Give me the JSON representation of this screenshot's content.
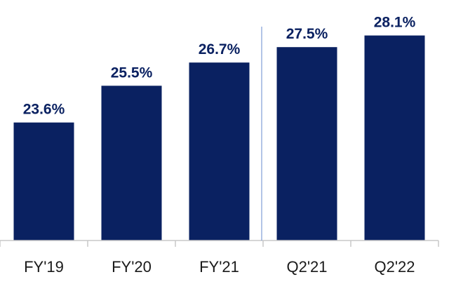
{
  "chart_data": {
    "type": "bar",
    "title": "",
    "xlabel": "",
    "ylabel": "",
    "categories": [
      "FY'19",
      "FY'20",
      "FY'21",
      "Q2'21",
      "Q2'22"
    ],
    "values": [
      23.6,
      25.5,
      26.7,
      27.5,
      28.1
    ],
    "data_labels": [
      "23.6%",
      "25.5%",
      "26.7%",
      "27.5%",
      "28.1%"
    ],
    "ylim": [
      17.5,
      29.5
    ],
    "grid": false,
    "legend": "none",
    "separator_after_category": "FY'21",
    "colors": {
      "bar": "#0a2161",
      "data_label": "#0a2161",
      "tick_label": "#1a1a1a",
      "axis": "#c8c8c8",
      "separator": "#7f9ed6"
    }
  }
}
